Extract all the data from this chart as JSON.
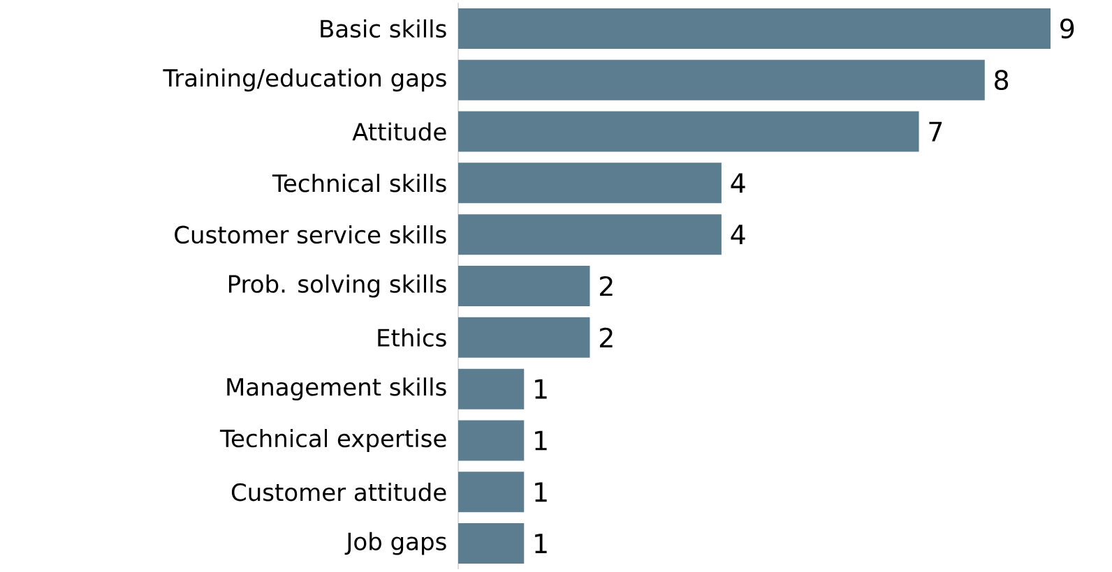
{
  "chart_data": {
    "type": "bar",
    "orientation": "horizontal",
    "categories": [
      "Basic skills",
      "Training/education gaps",
      "Attitude",
      "Technical skills",
      "Customer service skills",
      "Prob. solving skills",
      "Ethics",
      "Management skills",
      "Technical expertise",
      "Customer attitude",
      "Job gaps"
    ],
    "values": [
      9,
      8,
      7,
      4,
      4,
      2,
      2,
      1,
      1,
      1,
      1
    ],
    "color": "#5b7d8f",
    "data_labels": true
  }
}
